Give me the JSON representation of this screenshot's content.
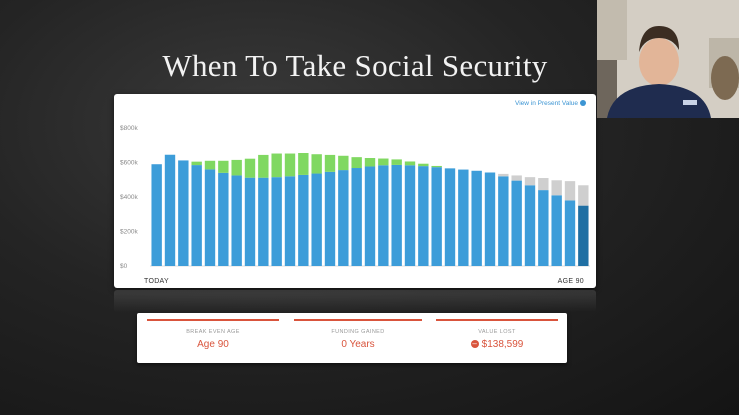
{
  "slide": {
    "title": "When To Take Social Security"
  },
  "chart": {
    "link_label": "View in Present Value",
    "start_label": "TODAY",
    "end_label": "AGE 90",
    "colors": {
      "blue": "#3d9dd9",
      "green": "#80d861",
      "gray": "#cfcfcf",
      "darkblue": "#1f6fa3"
    }
  },
  "chart_data": {
    "type": "bar",
    "title": "",
    "xlabel": "",
    "ylabel": "",
    "start_label": "TODAY",
    "end_label": "AGE 90",
    "ylim": [
      0,
      800000
    ],
    "ytick_labels": [
      "$0",
      "$200k",
      "$400k",
      "$600k",
      "$800k"
    ],
    "series": [
      {
        "values": [
          590000,
          645000,
          612000,
          585000,
          560000,
          540000,
          525000,
          512000,
          512000,
          515000,
          520000,
          528000,
          536000,
          546000,
          556000,
          568000,
          577000,
          584000,
          586000,
          584000,
          579000,
          573000,
          566000,
          559000,
          552000,
          542000,
          520000,
          495000,
          468000,
          440000,
          410000,
          380000,
          350000
        ]
      },
      {
        "values": [
          0,
          0,
          0,
          20000,
          50000,
          70000,
          90000,
          110000,
          132000,
          137000,
          132000,
          127000,
          112000,
          98000,
          83000,
          63000,
          49000,
          39000,
          32000,
          22000,
          14000,
          7000,
          0,
          0,
          0,
          0,
          0,
          0,
          0,
          0,
          0,
          0,
          0
        ]
      },
      {
        "values": [
          0,
          0,
          0,
          0,
          0,
          0,
          0,
          0,
          0,
          0,
          0,
          0,
          0,
          0,
          0,
          0,
          0,
          0,
          0,
          0,
          0,
          0,
          0,
          0,
          0,
          0,
          14000,
          30000,
          47000,
          70000,
          87000,
          112000,
          118000
        ]
      }
    ]
  },
  "stats": [
    {
      "label": "BREAK EVEN AGE",
      "value": "Age 90"
    },
    {
      "label": "FUNDING GAINED",
      "value": "0 Years"
    },
    {
      "label": "VALUE LOST",
      "value": "$138,599"
    }
  ]
}
